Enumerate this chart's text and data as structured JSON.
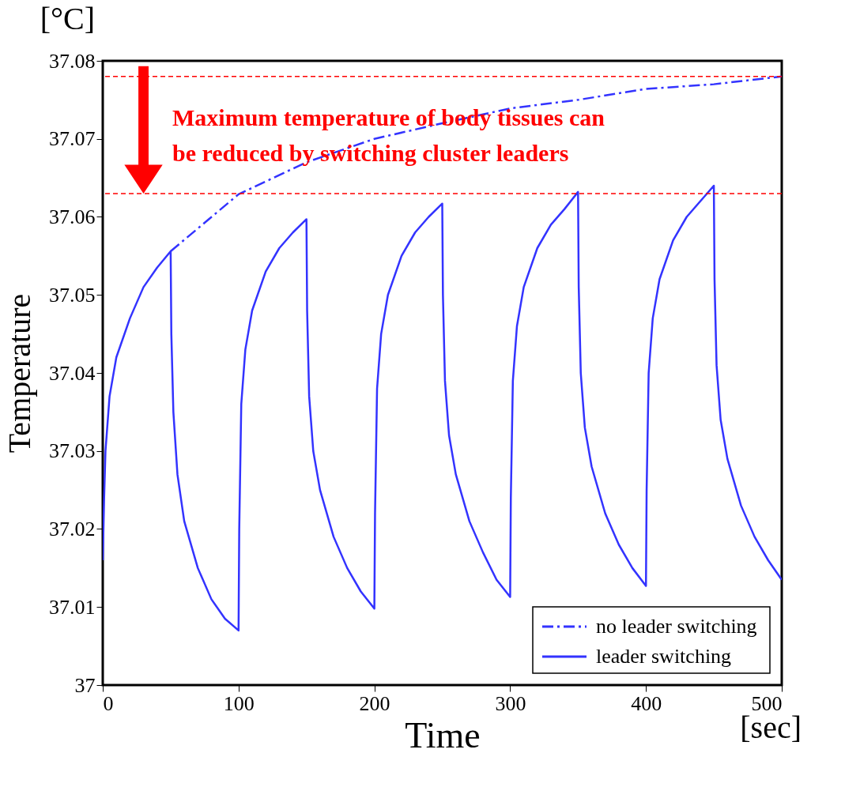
{
  "chart_data": {
    "type": "line",
    "xlabel": "Time",
    "ylabel": "Temperature",
    "annotations": [
      "[°C]",
      "[sec]",
      "Maximum temperature of  body tissues can",
      {
        "text": "be reduced by switching cluster leaders",
        "x": 30,
        "y": 37.063
      }
    ],
    "xlim": [
      0,
      500
    ],
    "xticks": [
      0,
      100,
      200,
      300,
      400,
      500
    ],
    "ylim": [
      37,
      37.08
    ],
    "yticks": [
      37,
      37.01,
      37.02,
      37.03,
      37.04,
      37.05,
      37.06,
      37.07,
      37.08
    ],
    "legend": "bottom right",
    "ref_lines": [
      {
        "axis": "y",
        "value": 37.078,
        "color": "#ff0000",
        "line_style": "dashed"
      },
      {
        "axis": "y",
        "value": 37.063,
        "color": "#ff0000",
        "line_style": "dashed"
      }
    ],
    "series": [
      {
        "name": "no leader switching",
        "color": "#3333ff",
        "line_style": "dashed",
        "x": [
          50,
          100,
          150,
          200,
          250,
          300,
          350,
          400,
          450,
          500
        ],
        "values": [
          37.0556,
          37.0629,
          37.067,
          37.07,
          37.072,
          37.0739,
          37.075,
          37.0764,
          37.077,
          37.078
        ]
      },
      {
        "name": "leader switching",
        "color": "#3333ff",
        "line_style": "solid",
        "x": [
          0,
          1,
          2,
          5,
          10,
          20,
          30,
          40,
          50,
          50.5,
          52,
          55,
          60,
          70,
          80,
          90,
          100,
          100.5,
          102,
          105,
          110,
          120,
          130,
          140,
          150,
          150.5,
          152,
          155,
          160,
          170,
          180,
          190,
          200,
          200.5,
          202,
          205,
          210,
          220,
          230,
          240,
          250,
          250.5,
          252,
          255,
          260,
          270,
          280,
          290,
          300,
          300.5,
          302,
          305,
          310,
          320,
          330,
          340,
          350,
          350.5,
          352,
          355,
          360,
          370,
          380,
          390,
          400,
          400.5,
          402,
          405,
          410,
          420,
          430,
          440,
          450,
          450.5,
          452,
          455,
          460,
          470,
          480,
          490,
          500
        ],
        "values": [
          37.016,
          37.024,
          37.03,
          37.037,
          37.042,
          37.047,
          37.051,
          37.0535,
          37.0556,
          37.045,
          37.035,
          37.027,
          37.021,
          37.015,
          37.011,
          37.0085,
          37.007,
          37.02,
          37.036,
          37.043,
          37.048,
          37.053,
          37.056,
          37.058,
          37.0597,
          37.048,
          37.037,
          37.03,
          37.025,
          37.019,
          37.015,
          37.012,
          37.0098,
          37.022,
          37.038,
          37.045,
          37.05,
          37.055,
          37.058,
          37.06,
          37.0617,
          37.05,
          37.039,
          37.032,
          37.027,
          37.021,
          37.017,
          37.0135,
          37.0113,
          37.024,
          37.039,
          37.046,
          37.051,
          37.056,
          37.059,
          37.061,
          37.0632,
          37.051,
          37.04,
          37.033,
          37.028,
          37.022,
          37.018,
          37.015,
          37.0127,
          37.025,
          37.04,
          37.047,
          37.052,
          37.057,
          37.06,
          37.062,
          37.064,
          37.052,
          37.041,
          37.034,
          37.029,
          37.023,
          37.019,
          37.016,
          37.0135
        ]
      }
    ]
  }
}
